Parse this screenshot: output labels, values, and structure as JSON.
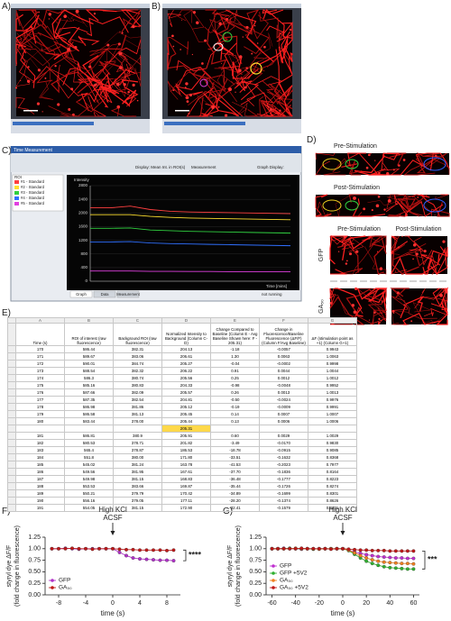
{
  "panels": {
    "a": "A)",
    "b": "B)",
    "c": "C)",
    "d": "D)",
    "e": "E)",
    "f": "F)",
    "g": "G)"
  },
  "panel_c": {
    "window_title": "Time Measurement",
    "display": "Display: Mean Int. in ROI(s)",
    "measurement": "Measurement",
    "graph_display": "Graph Display:",
    "roi_header": "ROI",
    "tabs": [
      "Graph",
      "Data",
      "Measurement"
    ],
    "status": "not running"
  },
  "panel_d": {
    "strip_pre": "Pre-Stimulation",
    "strip_post": "Post-Stimulation",
    "col_pre": "Pre-Stimulation",
    "col_post": "Post-Stimulation",
    "row_gfp": "GFP",
    "row_ga": "GA₅₀"
  },
  "table": {
    "columns": [
      "A",
      "B",
      "C",
      "D",
      "E",
      "F",
      "G"
    ],
    "headers": [
      "Time (s)",
      "ROI of interest (raw fluorescence)",
      "Background ROI (raw fluorescence)",
      "Normalized Intensity to Background (Column C-D)",
      "Change Compared to Baseline (Column E - Avg Baseline Shown here: F - 205.31)",
      "Change in Fluorescence/Baseline Fluorescence (ΔF/F) (Column F/Avg Baseline)",
      "ΔF (stimulation point as +1) (Column G+1)"
    ],
    "rows_before": [
      [
        "170",
        "586.44",
        "382.31",
        "204.13",
        "-1.18",
        "-0.0057",
        "0.9943"
      ],
      [
        "171",
        "589.67",
        "383.06",
        "206.61",
        "1.30",
        "0.0063",
        "1.0063"
      ],
      [
        "172",
        "590.01",
        "384.74",
        "205.27",
        "-0.04",
        "-0.0002",
        "0.9998"
      ],
      [
        "173",
        "588.54",
        "382.32",
        "206.22",
        "0.91",
        "0.0044",
        "1.0044"
      ],
      [
        "174",
        "586.3",
        "380.74",
        "205.56",
        "0.25",
        "0.0012",
        "1.0012"
      ],
      [
        "175",
        "585.16",
        "380.83",
        "204.33",
        "-0.98",
        "-0.0048",
        "0.9952"
      ],
      [
        "176",
        "587.66",
        "382.09",
        "205.57",
        "0.26",
        "0.0013",
        "1.0013"
      ],
      [
        "177",
        "587.35",
        "382.54",
        "204.81",
        "-0.50",
        "-0.0024",
        "0.9976"
      ],
      [
        "178",
        "586.98",
        "381.86",
        "205.12",
        "-0.19",
        "-0.0009",
        "0.9991"
      ],
      [
        "179",
        "586.58",
        "381.13",
        "205.45",
        "0.14",
        "0.0007",
        "1.0007"
      ],
      [
        "180",
        "583.44",
        "378.00",
        "205.44",
        "0.13",
        "0.0006",
        "1.0006"
      ]
    ],
    "baseline": "205.31",
    "rows_after": [
      [
        "181",
        "586.81",
        "380.9",
        "205.91",
        "0.60",
        "0.0029",
        "1.0029"
      ],
      [
        "182",
        "580.53",
        "378.71",
        "201.82",
        "-3.49",
        "-0.0170",
        "0.9830"
      ],
      [
        "183",
        "565.4",
        "378.87",
        "186.53",
        "-18.78",
        "-0.0915",
        "0.9085"
      ],
      [
        "184",
        "551.8",
        "380.00",
        "171.80",
        "-33.51",
        "-0.1632",
        "0.8368"
      ],
      [
        "185",
        "545.02",
        "381.24",
        "163.78",
        "-41.53",
        "-0.2023",
        "0.7977"
      ],
      [
        "186",
        "549.56",
        "381.95",
        "167.61",
        "-37.70",
        "-0.1836",
        "0.8164"
      ],
      [
        "187",
        "549.98",
        "381.15",
        "168.83",
        "-36.48",
        "-0.1777",
        "0.8223"
      ],
      [
        "188",
        "553.53",
        "383.66",
        "169.87",
        "-35.44",
        "-0.1726",
        "0.8274"
      ],
      [
        "189",
        "550.21",
        "379.79",
        "170.42",
        "-34.89",
        "-0.1699",
        "0.8301"
      ],
      [
        "190",
        "556.16",
        "379.05",
        "177.11",
        "-28.20",
        "-0.1374",
        "0.8626"
      ],
      [
        "191",
        "554.05",
        "381.15",
        "172.90",
        "-32.41",
        "-0.1579",
        "0.8421"
      ]
    ]
  },
  "chart_data": [
    {
      "type": "line",
      "ylabel": "Intensity",
      "xlabel": "Time [mins]",
      "x": [
        0,
        1,
        2,
        3,
        4,
        5,
        6,
        7,
        8,
        9,
        10
      ],
      "xlim": [
        0,
        10
      ],
      "ylim": [
        0,
        2800
      ],
      "yticks": [
        0,
        400,
        800,
        1200,
        1600,
        2000,
        2400,
        2800
      ],
      "series": [
        {
          "name": "#1 - Standard",
          "color": "#ff4040",
          "values": [
            2150,
            2150,
            2200,
            2100,
            2050,
            2030,
            2020,
            2010,
            2000,
            1990,
            1980
          ]
        },
        {
          "name": "#2 - Standard",
          "color": "#ffe030",
          "values": [
            1950,
            1950,
            1950,
            1900,
            1870,
            1850,
            1840,
            1830,
            1820,
            1810,
            1800
          ]
        },
        {
          "name": "#3 - Standard",
          "color": "#30d040",
          "values": [
            1550,
            1550,
            1560,
            1500,
            1480,
            1460,
            1450,
            1440,
            1430,
            1420,
            1410
          ]
        },
        {
          "name": "#4 - Standard",
          "color": "#3070ff",
          "values": [
            1150,
            1150,
            1160,
            1120,
            1100,
            1090,
            1080,
            1070,
            1060,
            1050,
            1040
          ]
        },
        {
          "name": "#5 - Standard",
          "color": "#e040e0",
          "values": [
            300,
            300,
            300,
            290,
            290,
            285,
            285,
            280,
            280,
            280,
            280
          ]
        }
      ]
    },
    {
      "type": "line",
      "ylabel": [
        "styryl dye ΔF/F",
        "(fold change in fluorescence)"
      ],
      "xlabel": "time (s)",
      "annotation": [
        "High KCl",
        "ACSF"
      ],
      "significance": "****",
      "legend": "lower left",
      "x": [
        -9,
        -8,
        -7,
        -6,
        -5,
        -4,
        -3,
        -2,
        -1,
        0,
        1,
        2,
        3,
        4,
        5,
        6,
        7,
        8,
        9
      ],
      "xlim": [
        -10,
        10
      ],
      "xticks": [
        -8,
        -4,
        0,
        4,
        8
      ],
      "ylim": [
        0,
        1.25
      ],
      "yticks": [
        {
          "value": 0,
          "label": "0.00"
        },
        0.25,
        {
          "value": 0.5,
          "label": "0.50"
        },
        0.75,
        {
          "value": 1,
          "label": "1.00"
        },
        1.25
      ],
      "series": [
        {
          "name": "GFP",
          "color": "#b030c8",
          "values": [
            1.0,
            1.0,
            1.01,
            1.0,
            0.99,
            1.0,
            1.0,
            1.0,
            1.0,
            1.0,
            0.92,
            0.85,
            0.8,
            0.78,
            0.77,
            0.76,
            0.75,
            0.75,
            0.74
          ]
        },
        {
          "name": "GA₅₀",
          "color": "#c01818",
          "values": [
            1.0,
            1.0,
            1.0,
            1.01,
            1.0,
            1.0,
            0.99,
            1.0,
            1.0,
            1.0,
            0.99,
            0.98,
            0.98,
            0.97,
            0.97,
            0.97,
            0.97,
            0.96,
            0.97
          ]
        }
      ]
    },
    {
      "type": "line",
      "ylabel": [
        "styryl dye ΔF/F",
        "(fold change in fluorescence)"
      ],
      "xlabel": "time (s)",
      "annotation": [
        "High KCl",
        "ACSF"
      ],
      "significance": "***",
      "legend": "lower left",
      "x": [
        -60,
        -55,
        -50,
        -45,
        -40,
        -35,
        -30,
        -25,
        -20,
        -15,
        -10,
        -5,
        0,
        5,
        10,
        15,
        20,
        25,
        30,
        35,
        40,
        45,
        50,
        55,
        60
      ],
      "xlim": [
        -65,
        65
      ],
      "xticks": [
        -60,
        -40,
        -20,
        0,
        20,
        40,
        60
      ],
      "ylim": [
        0,
        1.25
      ],
      "yticks": [
        {
          "value": 0,
          "label": "0.00"
        },
        0.25,
        {
          "value": 0.5,
          "label": "0.50"
        },
        0.75,
        {
          "value": 1,
          "label": "1.00"
        },
        1.25
      ],
      "series": [
        {
          "name": "GFP",
          "color": "#c030d0",
          "values": [
            1.0,
            1.0,
            1.01,
            1.0,
            1.0,
            0.99,
            1.0,
            1.0,
            1.0,
            1.0,
            1.0,
            1.0,
            1.0,
            0.97,
            0.93,
            0.9,
            0.87,
            0.85,
            0.83,
            0.82,
            0.81,
            0.8,
            0.8,
            0.79,
            0.79
          ]
        },
        {
          "name": "GFP +5V2",
          "color": "#30b030",
          "values": [
            1.0,
            1.0,
            1.0,
            1.01,
            1.0,
            1.0,
            1.0,
            0.99,
            1.0,
            1.0,
            1.0,
            1.0,
            1.0,
            0.96,
            0.88,
            0.8,
            0.73,
            0.68,
            0.64,
            0.61,
            0.59,
            0.58,
            0.57,
            0.56,
            0.56
          ]
        },
        {
          "name": "GA₅₀",
          "color": "#f08020",
          "values": [
            1.0,
            1.0,
            1.0,
            1.0,
            1.01,
            1.0,
            1.0,
            1.0,
            0.99,
            1.0,
            1.0,
            1.0,
            1.0,
            0.97,
            0.91,
            0.85,
            0.8,
            0.76,
            0.73,
            0.71,
            0.7,
            0.69,
            0.68,
            0.68,
            0.67
          ]
        },
        {
          "name": "GA₅₀ +5V2",
          "color": "#c01818",
          "values": [
            1.0,
            1.0,
            1.0,
            1.0,
            1.0,
            1.01,
            1.0,
            1.0,
            1.0,
            1.0,
            0.99,
            1.0,
            1.0,
            0.99,
            0.98,
            0.97,
            0.97,
            0.96,
            0.96,
            0.96,
            0.95,
            0.95,
            0.95,
            0.95,
            0.95
          ]
        }
      ]
    }
  ]
}
